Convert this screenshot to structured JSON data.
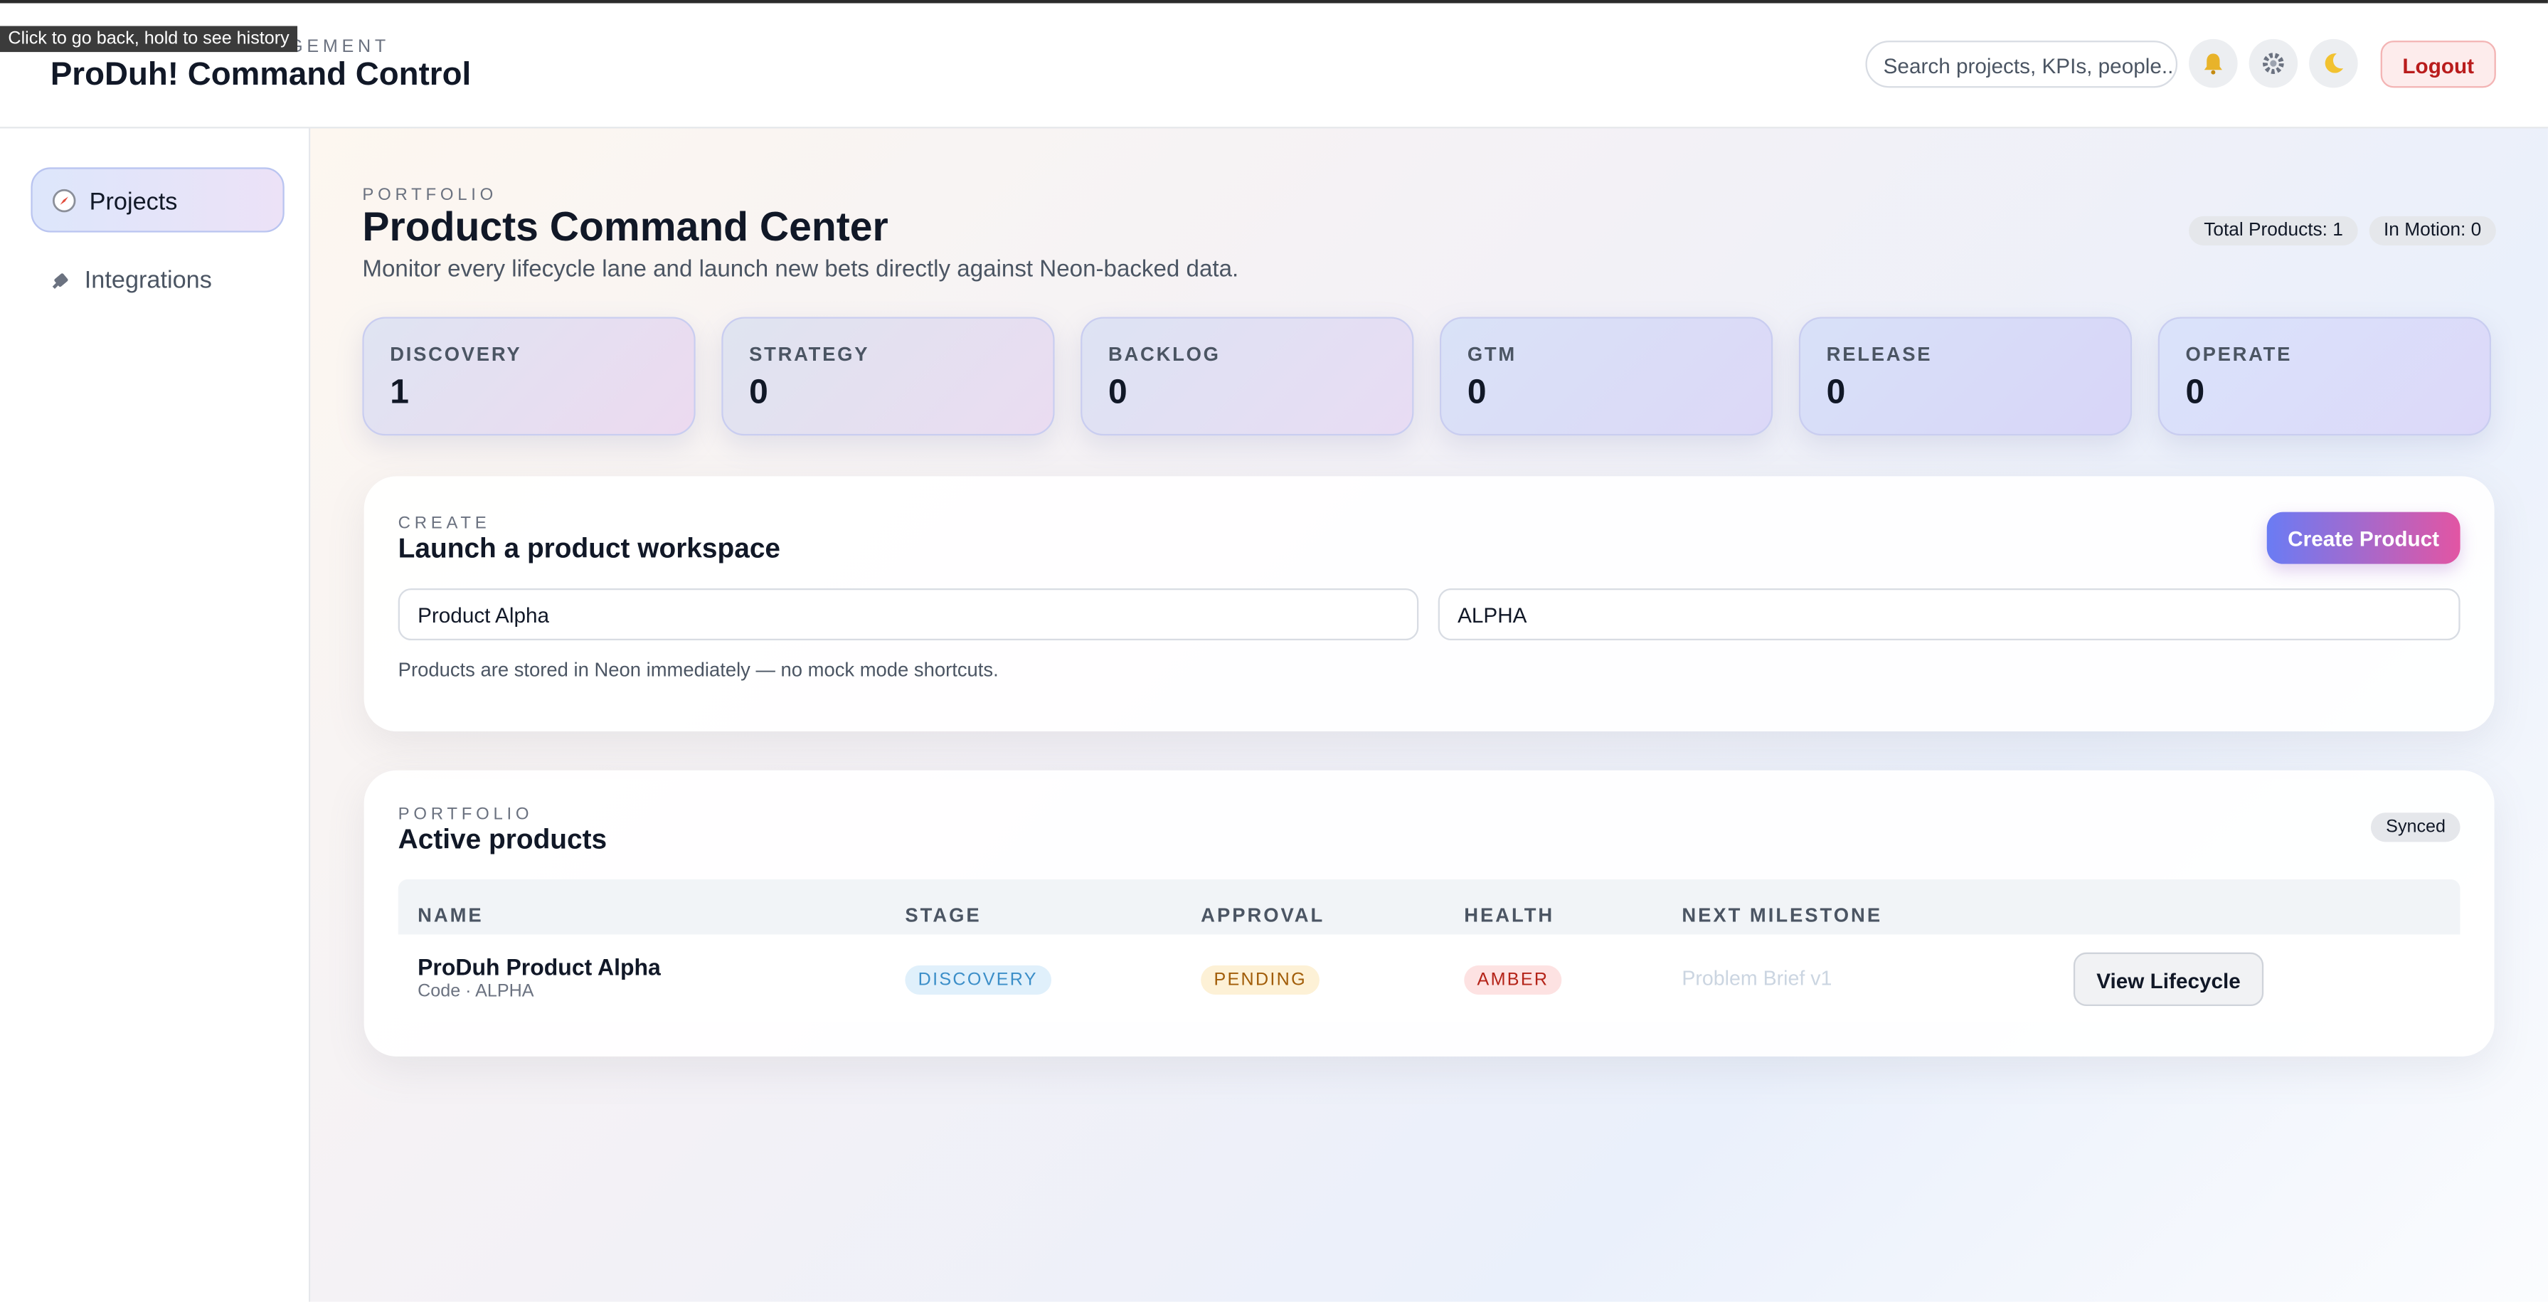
{
  "tooltip": "Click to go back, hold to see history",
  "header": {
    "eyebrow": "MANAGEMENT",
    "title": "ProDuh! Command Control",
    "search_placeholder": "Search projects, KPIs, people...",
    "logout": "Logout"
  },
  "sidebar": {
    "items": [
      {
        "label": "Projects"
      },
      {
        "label": "Integrations"
      }
    ]
  },
  "overview": {
    "eyebrow": "PORTFOLIO",
    "title": "Products Command Center",
    "subtitle": "Monitor every lifecycle lane and launch new bets directly against Neon-backed data.",
    "pills": [
      "Total Products: 1",
      "In Motion: 0"
    ]
  },
  "stages": [
    {
      "label": "DISCOVERY",
      "count": 1
    },
    {
      "label": "STRATEGY",
      "count": 0
    },
    {
      "label": "BACKLOG",
      "count": 0
    },
    {
      "label": "GTM",
      "count": 0
    },
    {
      "label": "RELEASE",
      "count": 0
    },
    {
      "label": "OPERATE",
      "count": 0
    }
  ],
  "create": {
    "eyebrow": "CREATE",
    "title": "Launch a product workspace",
    "button": "Create Product",
    "inputs": [
      "Product Alpha",
      "ALPHA"
    ],
    "note": "Products are stored in Neon immediately — no mock mode shortcuts."
  },
  "products": {
    "eyebrow": "PORTFOLIO",
    "title": "Active products",
    "status": "Synced",
    "table": {
      "columns": [
        "NAME",
        "STAGE",
        "APPROVAL",
        "HEALTH",
        "NEXT MILESTONE"
      ],
      "rows": [
        {
          "name": "ProDuh Product Alpha",
          "code": "Code · ALPHA",
          "stage": "DISCOVERY",
          "approval": "PENDING",
          "health": "AMBER",
          "milestone": "Problem Brief v1",
          "action": "View Lifecycle"
        }
      ]
    }
  }
}
